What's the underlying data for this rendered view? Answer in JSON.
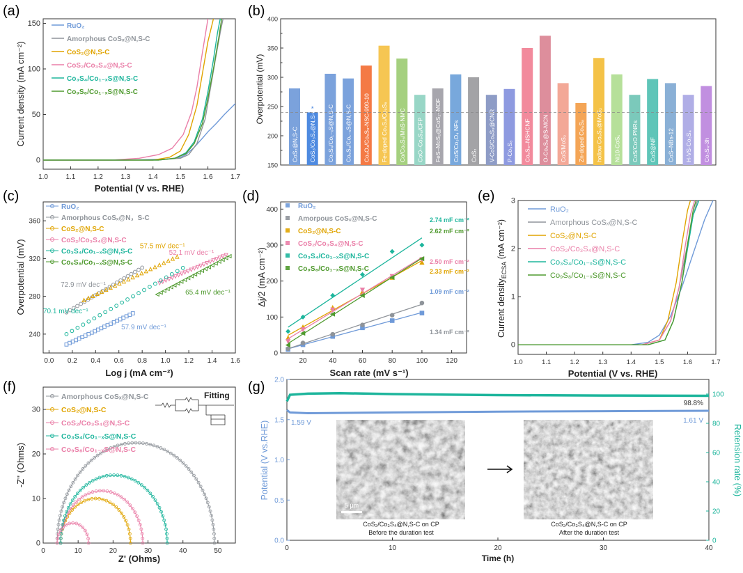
{
  "colors": {
    "ruo2": "#6f9ad8",
    "amorphous": "#8f949a",
    "cos2": "#e0a400",
    "cos2co3s4": "#ea7fa8",
    "co3s4co1": "#1db59c",
    "co9s8co1": "#4f9a2e"
  },
  "chart_data": [
    {
      "panel": "(a)",
      "type": "line",
      "xlabel": "Potential (V vs. RHE)",
      "ylabel": "Current density (mA cm⁻²)",
      "xlim": [
        1.0,
        1.7
      ],
      "ylim": [
        -10,
        155
      ],
      "xticks": [
        "1.0",
        "1.1",
        "1.2",
        "1.3",
        "1.4",
        "1.5",
        "1.6",
        "1.7"
      ],
      "yticks": [
        "0",
        "50",
        "100",
        "150"
      ],
      "legend": "top-left",
      "series": [
        {
          "name": "RuO₂",
          "color": "#6f9ad8",
          "x": [
            1.0,
            1.3,
            1.45,
            1.5,
            1.52,
            1.55,
            1.58,
            1.6,
            1.63,
            1.66,
            1.7
          ],
          "y": [
            0,
            0,
            1,
            3,
            6,
            14,
            24,
            31,
            40,
            50,
            62
          ]
        },
        {
          "name": "Amorphous CoSₓ@N,S-C",
          "color": "#8f949a",
          "x": [
            1.0,
            1.4,
            1.5,
            1.53,
            1.56,
            1.59,
            1.61,
            1.63,
            1.645,
            1.655
          ],
          "y": [
            0,
            0,
            2,
            6,
            18,
            45,
            80,
            115,
            140,
            155
          ]
        },
        {
          "name": "CoS₂@N,S-C",
          "color": "#e0a400",
          "x": [
            1.0,
            1.4,
            1.46,
            1.5,
            1.53,
            1.56,
            1.58,
            1.6,
            1.62
          ],
          "y": [
            0,
            0,
            3,
            10,
            28,
            60,
            95,
            130,
            155
          ]
        },
        {
          "name": "CoS₂/Co₃S₄@N,S-C",
          "color": "#ea7fa8",
          "x": [
            1.0,
            1.25,
            1.35,
            1.42,
            1.47,
            1.51,
            1.54,
            1.56,
            1.58,
            1.6
          ],
          "y": [
            0,
            0,
            2,
            6,
            13,
            28,
            52,
            80,
            118,
            155
          ]
        },
        {
          "name": "Co₃S₄/Co₁₋ₓS@N,S-C",
          "color": "#1db59c",
          "x": [
            1.0,
            1.42,
            1.48,
            1.52,
            1.55,
            1.58,
            1.6,
            1.62,
            1.635,
            1.645
          ],
          "y": [
            0,
            0,
            2,
            8,
            20,
            45,
            75,
            110,
            140,
            155
          ]
        },
        {
          "name": "Co₉S₈/Co₁₋ₓS@N,S-C",
          "color": "#4f9a2e",
          "x": [
            1.0,
            1.42,
            1.48,
            1.52,
            1.55,
            1.58,
            1.6,
            1.62,
            1.64,
            1.65
          ],
          "y": [
            0,
            0,
            2,
            7,
            18,
            40,
            68,
            100,
            135,
            155
          ]
        }
      ]
    },
    {
      "panel": "(b)",
      "type": "bar",
      "ylabel": "Overpotential (mV)",
      "ylim": [
        150,
        400
      ],
      "yticks": [
        "150",
        "200",
        "250",
        "300",
        "350",
        "400"
      ],
      "reference_line": 240,
      "star_label": "*",
      "categories": [
        "CoS₂@N,S-C",
        "CoS₂/Co₃S₄@N,S-C",
        "Co₃S₄/Co₁₋ₓS@N,S-C",
        "Co₉S₈/Co₁₋ₓS@N,S-C",
        "Co₃O₄/Co₉S₈-NSC-900-10",
        "Fe-doped Co₃S₄/Co₉S₈",
        "Co/Co₉S₈/MnS-NMC",
        "CoO–Co₉S₈/CFP",
        "FeS–MoS₂@CoS₂–MOF",
        "CoS/Co₃O₄ NFs",
        "CoS₂",
        "V-CoS/Co₉S₈@CNR",
        "P-Co₉S₈",
        "Co₉S₈–NSHCNF",
        "O-Co₉S₈@S-MCN",
        "CoS/MoS₂",
        "Zn-doped Co₉S₈",
        "hollow Co₉S₈@MoS₂",
        "Ni10-CoSₓ",
        "CoS/CoO PNRs",
        "CoS@NF",
        "CoS–NBs-12",
        "H-VS-Co₃S₄",
        "Co₃S₄-3h"
      ],
      "values": [
        281,
        240,
        306,
        298,
        320,
        354,
        332,
        270,
        281,
        305,
        300,
        270,
        280,
        350,
        371,
        290,
        256,
        333,
        305,
        270,
        297,
        290,
        270,
        285
      ],
      "colors": [
        "#7ba2dc",
        "#4e8ae0",
        "#7ba2dc",
        "#7ba2dc",
        "#f47a45",
        "#f6c653",
        "#a5d07f",
        "#98d6c6",
        "#a7a6ad",
        "#78a8dc",
        "#a3a3a6",
        "#8e9cc6",
        "#8e9ae0",
        "#f28a9c",
        "#dd8e9c",
        "#f3a897",
        "#f4a556",
        "#f4c247",
        "#b6e09a",
        "#7bc9bb",
        "#5ec5b8",
        "#8ab0d6",
        "#b0aee6",
        "#c18fe0"
      ]
    },
    {
      "panel": "(c)",
      "type": "scatter",
      "xlabel": "Log j (mA cm⁻²)",
      "ylabel": "Overpotential (mV)",
      "xlim": [
        -0.05,
        1.6
      ],
      "ylim": [
        220,
        380
      ],
      "xticks": [
        "0.0",
        "0.2",
        "0.4",
        "0.6",
        "0.8",
        "1.0",
        "1.2",
        "1.4",
        "1.6"
      ],
      "yticks": [
        "240",
        "280",
        "320",
        "360"
      ],
      "legend": "top-left",
      "series": [
        {
          "name": "RuO₂",
          "color": "#6f9ad8",
          "x_range": [
            0.15,
            0.72
          ],
          "slope": 57.9,
          "y0": 229,
          "label": "57.9 mV dec⁻¹",
          "label_at": [
            0.62,
            245
          ]
        },
        {
          "name": "Amorphous CoSₓ@N，S-C",
          "color": "#8f949a",
          "x_range": [
            0.15,
            0.8
          ],
          "slope": 72.9,
          "y0": 263,
          "label": "72.9 mV dec⁻¹",
          "label_at": [
            0.1,
            290
          ]
        },
        {
          "name": "CoS₂@N,S-C",
          "color": "#e0a400",
          "x_range": [
            0.3,
            1.1
          ],
          "slope": 57.5,
          "y0": 276,
          "label": "57.5 mV dec⁻¹",
          "label_at": [
            0.78,
            331
          ]
        },
        {
          "name": "CoS₂/Co₃S₄@N,S-C",
          "color": "#ea7fa8",
          "x_range": [
            0.95,
            1.52
          ],
          "slope": 52.1,
          "y0": 294,
          "label": "52.1 mV dec⁻¹",
          "label_at": [
            1.03,
            324
          ]
        },
        {
          "name": "Co₃S₄/Co₁₋ₓS@N,S-C",
          "color": "#1db59c",
          "x_range": [
            0.15,
            1.15
          ],
          "slope": 70.1,
          "y0": 240,
          "label": "70.1 mV dec⁻¹",
          "label_at": [
            -0.05,
            262
          ]
        },
        {
          "name": "Co₉S₈/Co₁₋ₓS@N,S-C",
          "color": "#4f9a2e",
          "x_range": [
            0.93,
            1.55
          ],
          "slope": 65.4,
          "y0": 282,
          "label": "65.4 mV dec⁻¹",
          "label_at": [
            1.17,
            282
          ]
        }
      ]
    },
    {
      "panel": "(d)",
      "type": "scatter",
      "xlabel": "Scan rate (mV s⁻¹)",
      "ylabel": "Δj/2 (mA cm⁻²)",
      "xlim": [
        5,
        130
      ],
      "ylim": [
        0,
        420
      ],
      "xticks": [
        "20",
        "40",
        "60",
        "80",
        "100",
        "120"
      ],
      "yticks": [
        "0",
        "100",
        "200",
        "300",
        "400"
      ],
      "legend": "top-left",
      "x": [
        10,
        20,
        40,
        60,
        80,
        100
      ],
      "series": [
        {
          "name": "RuO₂",
          "color": "#6f9ad8",
          "marker": "square",
          "y": [
            10,
            23,
            46,
            70,
            90,
            111
          ],
          "label": "1.09 mF cm⁻²"
        },
        {
          "name": "Amorpous CoSₓ@N,S-C",
          "color": "#8f949a",
          "marker": "circle",
          "y": [
            12,
            28,
            52,
            78,
            105,
            139
          ],
          "label": "1.34 mF cm⁻²"
        },
        {
          "name": "CoS₂@N,S-C",
          "color": "#e0a400",
          "marker": "triangle",
          "y": [
            42,
            72,
            126,
            170,
            210,
            252
          ],
          "label": "2.33 mF cm⁻²"
        },
        {
          "name": "CoS₂/Co₃S₄@N,S-C",
          "color": "#ea7fa8",
          "marker": "triangle-down",
          "y": [
            32,
            65,
            120,
            175,
            213,
            260
          ],
          "label": "2.50 mF cm⁻²"
        },
        {
          "name": "Co₃S₄/Co₁₋ₓS@N,S-C",
          "color": "#1db59c",
          "marker": "diamond",
          "y": [
            60,
            100,
            160,
            218,
            282,
            300
          ],
          "label": "2.74 mF cm⁻²"
        },
        {
          "name": "Co₉S₈/Co₁₋ₓS@N,S-C",
          "color": "#4f9a2e",
          "marker": "triangle-left",
          "y": [
            22,
            55,
            108,
            160,
            210,
            262
          ],
          "label": "2.62 mF cm⁻²"
        }
      ]
    },
    {
      "panel": "(e)",
      "type": "line",
      "xlabel": "Potential (V vs. RHE)",
      "ylabel": "Current densityECSA (mA cm⁻²)",
      "ylabel_main": "Current density",
      "ylabel_sub": "ECSA",
      "ylabel_unit": " (mA cm⁻²)",
      "xlim": [
        1.0,
        1.7
      ],
      "ylim": [
        -0.2,
        3
      ],
      "xticks": [
        "1.0",
        "1.1",
        "1.2",
        "1.3",
        "1.4",
        "1.5",
        "1.6",
        "1.7"
      ],
      "yticks": [
        "0",
        "1",
        "2",
        "3"
      ],
      "legend": "top-right",
      "series": [
        {
          "name": "RuO₂",
          "color": "#6f9ad8",
          "x": [
            1.0,
            1.4,
            1.46,
            1.5,
            1.54,
            1.58,
            1.62,
            1.66,
            1.69
          ],
          "y": [
            0,
            0,
            0.05,
            0.2,
            0.6,
            1.2,
            1.9,
            2.6,
            3.0
          ]
        },
        {
          "name": "Amorphous CoSₓ@N,S-C",
          "color": "#8f949a",
          "x": [
            1.0,
            1.44,
            1.5,
            1.54,
            1.57,
            1.6,
            1.62,
            1.635
          ],
          "y": [
            0,
            0,
            0.1,
            0.5,
            1.2,
            2.1,
            2.7,
            3.0
          ]
        },
        {
          "name": "CoS₂@N,S-C",
          "color": "#e0a400",
          "x": [
            1.0,
            1.44,
            1.5,
            1.53,
            1.56,
            1.58,
            1.6,
            1.61
          ],
          "y": [
            0,
            0,
            0.1,
            0.5,
            1.3,
            2.1,
            2.8,
            3.0
          ]
        },
        {
          "name": "CoS₂/Co₃S₄@N,S-C",
          "color": "#ea7fa8",
          "x": [
            1.0,
            1.44,
            1.5,
            1.54,
            1.57,
            1.59,
            1.61,
            1.625
          ],
          "y": [
            0,
            0,
            0.1,
            0.5,
            1.2,
            2.0,
            2.7,
            3.0
          ]
        },
        {
          "name": "Co₃S₄/Co₁₋ₓS@N,S-C",
          "color": "#1db59c",
          "x": [
            1.0,
            1.46,
            1.52,
            1.55,
            1.58,
            1.6,
            1.62,
            1.64
          ],
          "y": [
            0,
            0,
            0.1,
            0.5,
            1.3,
            2.0,
            2.7,
            3.0
          ]
        },
        {
          "name": "Co₉S₈/Co₁₋ₓS@N,S-C",
          "color": "#4f9a2e",
          "x": [
            1.0,
            1.46,
            1.52,
            1.55,
            1.58,
            1.6,
            1.62,
            1.63
          ],
          "y": [
            0,
            0,
            0.1,
            0.5,
            1.3,
            2.1,
            2.8,
            3.0
          ]
        }
      ]
    },
    {
      "panel": "(f)",
      "type": "scatter",
      "xlabel": "Z' (Ohms)",
      "ylabel": "-Z'' (Ohms)",
      "xlim": [
        0,
        55
      ],
      "ylim": [
        0,
        35
      ],
      "xticks": [
        "0",
        "10",
        "20",
        "30",
        "40",
        "50"
      ],
      "yticks": [
        "0",
        "10",
        "20",
        "30"
      ],
      "legend": "top-left",
      "fitting_label": "Fitting",
      "series": [
        {
          "name": "Amorphous CoSₓ@N,S-C",
          "color": "#8f949a",
          "z_start": 4,
          "z_end": 49
        },
        {
          "name": "CoS₂@N,S-C",
          "color": "#e0a400",
          "z_start": 5,
          "z_end": 25
        },
        {
          "name": "CoS₂/Co₃S₄@N,S-C",
          "color": "#ea7fa8",
          "z_start": 5,
          "z_end": 28.5
        },
        {
          "name": "Co₃S₄/Co₁₋ₓS@N,S-C",
          "color": "#1db59c",
          "z_start": 5,
          "z_end": 35.5
        },
        {
          "name": "Co₉S₈/Co₁₋ₓS@N,S-C",
          "color": "#ea7fa8",
          "z_start": 4,
          "z_end": 13
        }
      ]
    },
    {
      "panel": "(g)",
      "type": "line",
      "xlabel": "Time (h)",
      "ylabel": "Potential (V vs.RHE)",
      "ylabel_right": "Retension rate (%)",
      "xlim": [
        0,
        40
      ],
      "ylim": [
        0,
        2.0
      ],
      "ylim_right": [
        0,
        110
      ],
      "xticks": [
        "0",
        "10",
        "20",
        "30",
        "40"
      ],
      "yticks": [
        "0.0",
        "0.5",
        "1.0",
        "1.5",
        "2.0"
      ],
      "yticks_right": [
        "0",
        "20",
        "40",
        "60",
        "80",
        "100"
      ],
      "series": [
        {
          "name": "Potential",
          "color": "#6f9ad8",
          "x": [
            0,
            0.3,
            2,
            10,
            20,
            30,
            40
          ],
          "y": [
            1.62,
            1.59,
            1.58,
            1.59,
            1.6,
            1.605,
            1.61
          ]
        },
        {
          "name": "Retension rate",
          "color": "#1db59c",
          "x": [
            0,
            0.3,
            2,
            5,
            10,
            20,
            30,
            40
          ],
          "y": [
            95,
            99.5,
            100.3,
            100.6,
            100,
            99.3,
            99.0,
            98.8
          ]
        }
      ],
      "annotations": {
        "start_potential": "1.59 V",
        "end_potential": "1.61 V",
        "retention": "98.8%"
      },
      "images": [
        {
          "scale": "5 μm",
          "caption1": "CoS₂/Co₃S₄@N,S-C on CP",
          "caption2": "Before the duration test"
        },
        {
          "caption1": "CoS₂/Co₃S₄@N,S-C on CP",
          "caption2": "After the duration test"
        }
      ]
    }
  ]
}
